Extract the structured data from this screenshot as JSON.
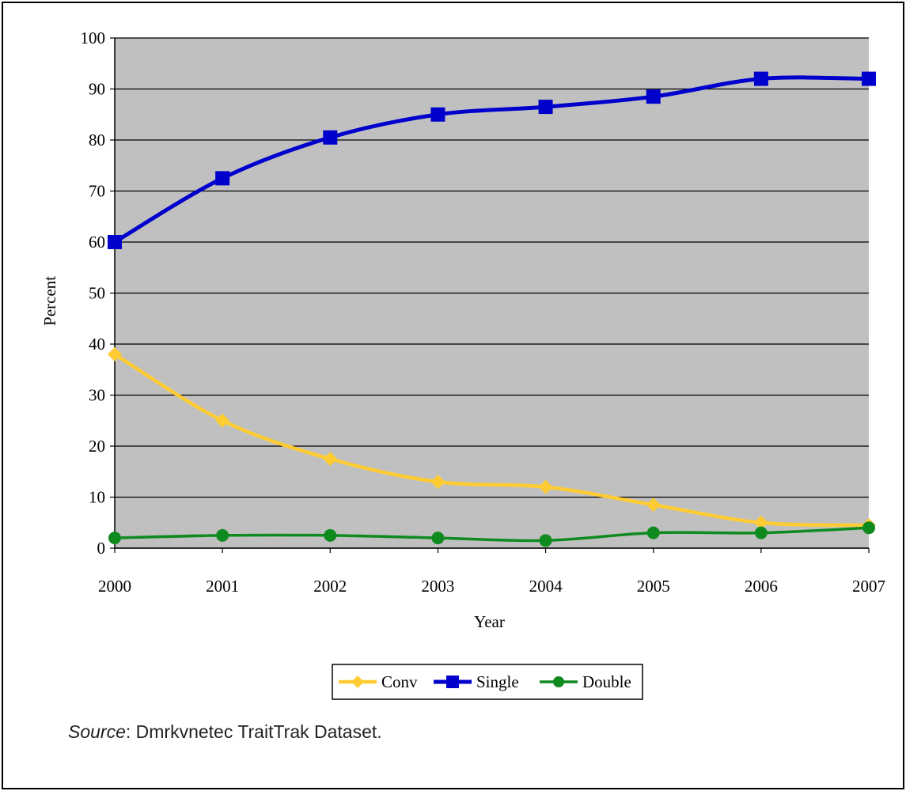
{
  "chart_data": {
    "type": "line",
    "title": "",
    "xlabel": "Year",
    "ylabel": "Percent",
    "x": [
      "2000",
      "2001",
      "2002",
      "2003",
      "2004",
      "2005",
      "2006",
      "2007"
    ],
    "ylim": [
      0,
      100
    ],
    "yticks": [
      "0",
      "10",
      "20",
      "30",
      "40",
      "50",
      "60",
      "70",
      "80",
      "90",
      "100"
    ],
    "grid": true,
    "plot_background": "#c0c0c0",
    "legend_position": "bottom",
    "series": [
      {
        "name": "Conv",
        "color": "#ffcc33",
        "marker": "diamond",
        "values": [
          38,
          25,
          17.5,
          13,
          12,
          8.5,
          5,
          4.5
        ]
      },
      {
        "name": "Single",
        "color": "#0000cc",
        "marker": "square",
        "values": [
          60,
          72.5,
          80.5,
          85,
          86.5,
          88.5,
          92,
          92
        ]
      },
      {
        "name": "Double",
        "color": "#0f8a1f",
        "marker": "circle",
        "values": [
          2,
          2.5,
          2.5,
          2,
          1.5,
          3,
          3,
          4
        ]
      }
    ]
  },
  "source": {
    "label": "Source",
    "text": ": Dmrkvnetec TraitTrak Dataset."
  }
}
